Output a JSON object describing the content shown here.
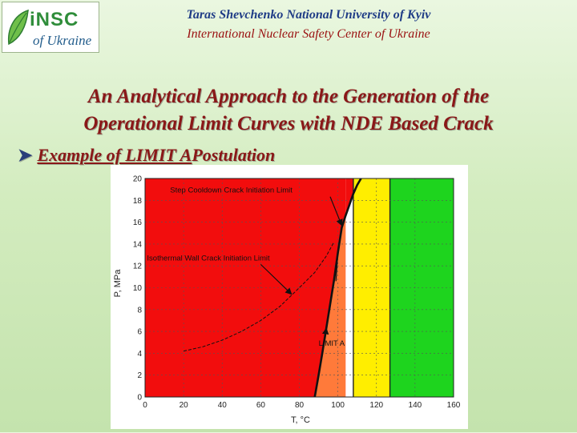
{
  "header": {
    "university": "Taras Shevchenko National University of Kyiv",
    "center": "International Nuclear Safety Center of Ukraine",
    "logo": {
      "line1": "iNSC",
      "line2": "of Ukraine",
      "icon": "leaf-icon"
    }
  },
  "title": {
    "line1": "An Analytical Approach to the Generation of the",
    "line2": "Operational Limit Curves with NDE Based Crack"
  },
  "bullet": {
    "icon": "arrow-bullet-icon",
    "text_a": "Example of LIMIT A",
    "text_b": "Postulation"
  },
  "colors": {
    "red": "#f20d0d",
    "orange": "#ff7a3a",
    "yellow": "#ffee00",
    "green": "#1ed41e",
    "title": "#8a1818",
    "university": "#1f3c86",
    "center": "#9a1010"
  },
  "chart_data": {
    "type": "line",
    "xlabel": "T, °C",
    "ylabel": "P, MPa",
    "xlim": [
      0,
      160
    ],
    "ylim": [
      0,
      20
    ],
    "x_ticks": [
      "0",
      "20",
      "40",
      "60",
      "80",
      "100",
      "120",
      "140",
      "160"
    ],
    "y_ticks": [
      "0",
      "2",
      "4",
      "6",
      "8",
      "10",
      "12",
      "14",
      "16",
      "18",
      "20"
    ],
    "grid": "dashed",
    "regions": [
      {
        "color": "red",
        "x": [
          0,
          120
        ],
        "note": "area above/left of the LIMIT A boundary"
      },
      {
        "color": "orange",
        "x": [
          88,
          104
        ],
        "note": "between LIMIT A curve and the 104 °C line"
      },
      {
        "color": "yellow",
        "x": [
          108,
          127
        ]
      },
      {
        "color": "green",
        "x": [
          127,
          160
        ]
      }
    ],
    "series": [
      {
        "name": "Step Cooldown Crack Initiation Limit",
        "x": [
          99,
          100,
          102,
          104,
          106,
          108,
          110,
          112
        ],
        "y": [
          10.6,
          13.2,
          15.5,
          16.6,
          17.6,
          18.6,
          19.4,
          20.0
        ]
      },
      {
        "name": "Isothermal Wall Crack Initiation Limit",
        "x": [
          20,
          30,
          40,
          50,
          60,
          70,
          80,
          88,
          94,
          98
        ],
        "y": [
          4.2,
          4.6,
          5.2,
          6.0,
          7.0,
          8.3,
          10.0,
          11.4,
          12.9,
          14.2
        ]
      },
      {
        "name": "LIMIT A",
        "x": [
          88,
          90,
          92,
          94,
          96,
          98,
          100,
          102,
          104,
          106,
          108,
          110,
          112
        ],
        "y": [
          0,
          2.0,
          4.1,
          6.3,
          8.5,
          10.7,
          13.2,
          15.5,
          16.6,
          17.6,
          18.6,
          19.4,
          20.0
        ]
      }
    ],
    "annotations": [
      {
        "text": "Step Cooldown Crack Initiation Limit",
        "at": [
          13,
          18.7
        ],
        "arrow_to": [
          102,
          15.7
        ]
      },
      {
        "text": "Isothermal Wall Crack Initiation Limit",
        "at": [
          1,
          12.5
        ],
        "arrow_to": [
          76,
          9.4
        ]
      },
      {
        "text": "LIMIT A",
        "at": [
          90,
          4.7
        ],
        "arrow_to": [
          94,
          6.3
        ]
      }
    ]
  }
}
